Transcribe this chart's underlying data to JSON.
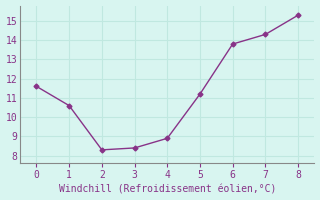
{
  "x": [
    0,
    1,
    2,
    3,
    4,
    5,
    6,
    7,
    8
  ],
  "y": [
    11.6,
    10.6,
    8.3,
    8.4,
    8.9,
    11.2,
    13.8,
    14.3,
    15.3
  ],
  "line_color": "#883388",
  "marker": "D",
  "marker_size": 2.5,
  "line_width": 1.0,
  "xlabel": "Windchill (Refroidissement éolien,°C)",
  "xlabel_fontsize": 7.0,
  "xlabel_color": "#883388",
  "xticks": [
    0,
    1,
    2,
    3,
    4,
    5,
    6,
    7,
    8
  ],
  "yticks": [
    8,
    9,
    10,
    11,
    12,
    13,
    14,
    15
  ],
  "xlim": [
    -0.5,
    8.5
  ],
  "ylim": [
    7.6,
    15.8
  ],
  "background_color": "#d8f5f0",
  "grid_color": "#c0e8e0",
  "tick_color": "#883388",
  "tick_fontsize": 7.0,
  "spine_color": "#888888"
}
